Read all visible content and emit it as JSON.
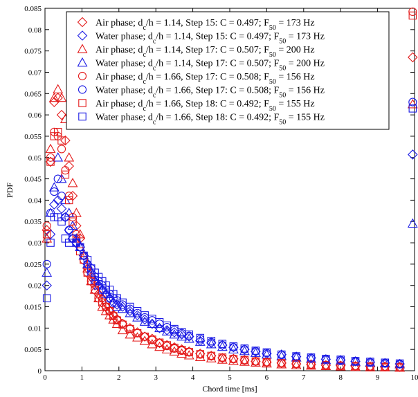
{
  "chart_data": {
    "type": "scatter",
    "title": "",
    "xlabel": "Chord time [ms]",
    "ylabel": "PDF",
    "xlim": [
      0,
      10
    ],
    "ylim": [
      0,
      0.085
    ],
    "xticks": [
      "0",
      "1",
      "2",
      "3",
      "4",
      "5",
      "6",
      "7",
      "8",
      "9",
      "10"
    ],
    "yticks": [
      "0",
      "0.005",
      "0.01",
      "0.015",
      "0.02",
      "0.025",
      "0.03",
      "0.035",
      "0.04",
      "0.045",
      "0.05",
      "0.055",
      "0.06",
      "0.065",
      "0.07",
      "0.075",
      "0.08",
      "0.085"
    ],
    "grid": false,
    "legend_position": "top-right",
    "series": [
      {
        "name": "Air phase; dc/h = 1.14, Step 15: C = 0.497; F50 = 173 Hz",
        "phase": "Air phase",
        "dch": "1.14",
        "step": "15",
        "C": "0.497",
        "F50": "173 Hz",
        "marker": "diamond",
        "color": "#e41a1a",
        "x": [
          0.05,
          0.15,
          0.25,
          0.35,
          0.45,
          0.55,
          0.65,
          0.75,
          0.85,
          0.95,
          1.05,
          1.15,
          1.25,
          1.35,
          1.45,
          1.55,
          1.65,
          1.75,
          1.85,
          1.95,
          2.1,
          2.3,
          2.5,
          2.7,
          2.9,
          3.1,
          3.3,
          3.5,
          3.7,
          3.9,
          4.2,
          4.5,
          4.8,
          5.1,
          5.4,
          5.7,
          6.0,
          6.4,
          6.8,
          7.2,
          7.6,
          8.0,
          8.4,
          8.8,
          9.2,
          9.6,
          9.95
        ],
        "y": [
          0.033,
          0.049,
          0.063,
          0.064,
          0.06,
          0.054,
          0.048,
          0.041,
          0.034,
          0.031,
          0.027,
          0.024,
          0.022,
          0.02,
          0.018,
          0.017,
          0.015,
          0.014,
          0.013,
          0.012,
          0.011,
          0.01,
          0.009,
          0.008,
          0.0075,
          0.0065,
          0.006,
          0.0055,
          0.005,
          0.0045,
          0.004,
          0.0035,
          0.003,
          0.0028,
          0.0025,
          0.0022,
          0.002,
          0.0018,
          0.0016,
          0.0015,
          0.0013,
          0.0012,
          0.0011,
          0.001,
          0.001,
          0.0009,
          0.0735
        ]
      },
      {
        "name": "Water phase; dc/h = 1.14, Step 15: C = 0.497; F50 = 173 Hz",
        "phase": "Water phase",
        "dch": "1.14",
        "step": "15",
        "C": "0.497",
        "F50": "173 Hz",
        "marker": "diamond",
        "color": "#1a1ae4",
        "x": [
          0.05,
          0.15,
          0.25,
          0.35,
          0.45,
          0.55,
          0.65,
          0.75,
          0.85,
          0.95,
          1.05,
          1.15,
          1.25,
          1.35,
          1.45,
          1.55,
          1.65,
          1.75,
          1.85,
          1.95,
          2.1,
          2.3,
          2.5,
          2.7,
          2.9,
          3.1,
          3.3,
          3.5,
          3.7,
          3.9,
          4.2,
          4.5,
          4.8,
          5.1,
          5.4,
          5.7,
          6.0,
          6.4,
          6.8,
          7.2,
          7.6,
          8.0,
          8.4,
          8.8,
          9.2,
          9.6,
          9.95
        ],
        "y": [
          0.02,
          0.032,
          0.039,
          0.04,
          0.038,
          0.036,
          0.033,
          0.031,
          0.03,
          0.029,
          0.027,
          0.025,
          0.023,
          0.021,
          0.02,
          0.019,
          0.018,
          0.017,
          0.016,
          0.0155,
          0.015,
          0.014,
          0.013,
          0.012,
          0.011,
          0.01,
          0.0095,
          0.009,
          0.0085,
          0.008,
          0.007,
          0.0065,
          0.006,
          0.0055,
          0.005,
          0.0045,
          0.004,
          0.0038,
          0.0033,
          0.003,
          0.0027,
          0.0025,
          0.0022,
          0.002,
          0.0018,
          0.0016,
          0.0507
        ]
      },
      {
        "name": "Air phase; dc/h = 1.14, Step 17: C = 0.507; F50 = 200 Hz",
        "phase": "Air phase",
        "dch": "1.14",
        "step": "17",
        "C": "0.507",
        "F50": "200 Hz",
        "marker": "triangle",
        "color": "#e41a1a",
        "x": [
          0.05,
          0.15,
          0.25,
          0.35,
          0.45,
          0.55,
          0.65,
          0.75,
          0.85,
          0.95,
          1.05,
          1.15,
          1.25,
          1.35,
          1.45,
          1.55,
          1.65,
          1.75,
          1.85,
          1.95,
          2.1,
          2.3,
          2.5,
          2.7,
          2.9,
          3.1,
          3.3,
          3.5,
          3.7,
          3.9,
          4.2,
          4.5,
          4.8,
          5.1,
          5.4,
          5.7,
          6.0,
          6.4,
          6.8,
          7.2,
          7.6,
          8.0,
          8.4,
          8.8,
          9.2,
          9.6,
          9.95
        ],
        "y": [
          0.031,
          0.052,
          0.064,
          0.066,
          0.064,
          0.059,
          0.05,
          0.044,
          0.037,
          0.032,
          0.027,
          0.024,
          0.021,
          0.019,
          0.017,
          0.015,
          0.014,
          0.013,
          0.012,
          0.011,
          0.0095,
          0.0085,
          0.0078,
          0.007,
          0.0062,
          0.0056,
          0.005,
          0.0045,
          0.004,
          0.0036,
          0.0032,
          0.0029,
          0.0026,
          0.0023,
          0.0021,
          0.0019,
          0.0017,
          0.0015,
          0.0013,
          0.0012,
          0.0011,
          0.001,
          0.0009,
          0.0008,
          0.0008,
          0.0007,
          0.0625
        ]
      },
      {
        "name": "Water phase; dc/h = 1.14, Step 17: C = 0.507; F50 = 200 Hz",
        "phase": "Water phase",
        "dch": "1.14",
        "step": "17",
        "C": "0.507",
        "F50": "200 Hz",
        "marker": "triangle",
        "color": "#1a1ae4",
        "x": [
          0.05,
          0.15,
          0.25,
          0.35,
          0.45,
          0.55,
          0.65,
          0.75,
          0.85,
          0.95,
          1.05,
          1.15,
          1.25,
          1.35,
          1.45,
          1.55,
          1.65,
          1.75,
          1.85,
          1.95,
          2.1,
          2.3,
          2.5,
          2.7,
          2.9,
          3.1,
          3.3,
          3.5,
          3.7,
          3.9,
          4.2,
          4.5,
          4.8,
          5.1,
          5.4,
          5.7,
          6.0,
          6.4,
          6.8,
          7.2,
          7.6,
          8.0,
          8.4,
          8.8,
          9.2,
          9.6,
          9.95
        ],
        "y": [
          0.023,
          0.037,
          0.043,
          0.05,
          0.045,
          0.04,
          0.037,
          0.034,
          0.031,
          0.029,
          0.027,
          0.025,
          0.023,
          0.021,
          0.02,
          0.019,
          0.018,
          0.017,
          0.016,
          0.015,
          0.0145,
          0.0135,
          0.0125,
          0.0115,
          0.011,
          0.01,
          0.0092,
          0.0085,
          0.008,
          0.0075,
          0.0068,
          0.0062,
          0.0056,
          0.005,
          0.0046,
          0.0042,
          0.0038,
          0.0034,
          0.0031,
          0.0028,
          0.0025,
          0.0023,
          0.0021,
          0.0019,
          0.0017,
          0.0015,
          0.0345
        ]
      },
      {
        "name": "Air phase; dc/h = 1.66, Step 17: C = 0.508; F50 = 156 Hz",
        "phase": "Air phase",
        "dch": "1.66",
        "step": "17",
        "C": "0.508",
        "F50": "156 Hz",
        "marker": "circle",
        "color": "#e41a1a",
        "x": [
          0.05,
          0.15,
          0.25,
          0.35,
          0.45,
          0.55,
          0.65,
          0.75,
          0.85,
          0.95,
          1.05,
          1.15,
          1.25,
          1.35,
          1.45,
          1.55,
          1.65,
          1.75,
          1.85,
          1.95,
          2.1,
          2.3,
          2.5,
          2.7,
          2.9,
          3.1,
          3.3,
          3.5,
          3.7,
          3.9,
          4.2,
          4.5,
          4.8,
          5.1,
          5.4,
          5.7,
          6.0,
          6.4,
          6.8,
          7.2,
          7.6,
          8.0,
          8.4,
          8.8,
          9.2,
          9.6,
          9.95
        ],
        "y": [
          0.034,
          0.05,
          0.056,
          0.055,
          0.052,
          0.047,
          0.041,
          0.036,
          0.032,
          0.029,
          0.026,
          0.023,
          0.021,
          0.019,
          0.017,
          0.016,
          0.015,
          0.014,
          0.013,
          0.012,
          0.011,
          0.0098,
          0.0088,
          0.008,
          0.0072,
          0.0065,
          0.0058,
          0.0052,
          0.0047,
          0.0043,
          0.0038,
          0.0034,
          0.003,
          0.0027,
          0.0024,
          0.0022,
          0.002,
          0.0018,
          0.0016,
          0.0014,
          0.0013,
          0.0012,
          0.0011,
          0.001,
          0.0009,
          0.0008,
          0.0842
        ]
      },
      {
        "name": "Water phase; dc/h = 1.66, Step 17: C = 0.508; F50 = 156 Hz",
        "phase": "Water phase",
        "dch": "1.66",
        "step": "17",
        "C": "0.508",
        "F50": "156 Hz",
        "marker": "circle",
        "color": "#1a1ae4",
        "x": [
          0.05,
          0.15,
          0.25,
          0.35,
          0.45,
          0.55,
          0.65,
          0.75,
          0.85,
          0.95,
          1.05,
          1.15,
          1.25,
          1.35,
          1.45,
          1.55,
          1.65,
          1.75,
          1.85,
          1.95,
          2.1,
          2.3,
          2.5,
          2.7,
          2.9,
          3.1,
          3.3,
          3.5,
          3.7,
          3.9,
          4.2,
          4.5,
          4.8,
          5.1,
          5.4,
          5.7,
          6.0,
          6.4,
          6.8,
          7.2,
          7.6,
          8.0,
          8.4,
          8.8,
          9.2,
          9.6,
          9.95
        ],
        "y": [
          0.025,
          0.037,
          0.042,
          0.045,
          0.041,
          0.036,
          0.033,
          0.031,
          0.03,
          0.029,
          0.027,
          0.025,
          0.024,
          0.022,
          0.021,
          0.02,
          0.019,
          0.018,
          0.017,
          0.0165,
          0.0155,
          0.0145,
          0.0135,
          0.0125,
          0.0118,
          0.011,
          0.0102,
          0.0095,
          0.0088,
          0.0082,
          0.0074,
          0.0067,
          0.006,
          0.0055,
          0.005,
          0.0046,
          0.0042,
          0.0037,
          0.0033,
          0.003,
          0.0027,
          0.0025,
          0.0022,
          0.002,
          0.0018,
          0.0016,
          0.063
        ]
      },
      {
        "name": "Air phase; dc/h = 1.66, Step 18: C = 0.492; F50 = 155 Hz",
        "phase": "Air phase",
        "dch": "1.66",
        "step": "18",
        "C": "0.492",
        "F50": "155 Hz",
        "marker": "square",
        "color": "#e41a1a",
        "x": [
          0.05,
          0.15,
          0.25,
          0.35,
          0.45,
          0.55,
          0.65,
          0.75,
          0.85,
          0.95,
          1.05,
          1.15,
          1.25,
          1.35,
          1.45,
          1.55,
          1.65,
          1.75,
          1.85,
          1.95,
          2.1,
          2.3,
          2.5,
          2.7,
          2.9,
          3.1,
          3.3,
          3.5,
          3.7,
          3.9,
          4.2,
          4.5,
          4.8,
          5.1,
          5.4,
          5.7,
          6.0,
          6.4,
          6.8,
          7.2,
          7.6,
          8.0,
          8.4,
          8.8,
          9.2,
          9.6,
          9.95
        ],
        "y": [
          0.032,
          0.049,
          0.055,
          0.056,
          0.054,
          0.046,
          0.04,
          0.035,
          0.031,
          0.028,
          0.026,
          0.023,
          0.021,
          0.019,
          0.017,
          0.016,
          0.015,
          0.014,
          0.0128,
          0.0118,
          0.0108,
          0.0098,
          0.0088,
          0.008,
          0.0073,
          0.0066,
          0.006,
          0.0054,
          0.0049,
          0.0044,
          0.0039,
          0.0035,
          0.0031,
          0.0028,
          0.0025,
          0.0022,
          0.002,
          0.0018,
          0.0016,
          0.0014,
          0.0013,
          0.0012,
          0.0011,
          0.001,
          0.0009,
          0.0008,
          0.0833
        ]
      },
      {
        "name": "Water phase; dc/h = 1.66, Step 18: C = 0.492; F50 = 155 Hz",
        "phase": "Water phase",
        "dch": "1.66",
        "step": "18",
        "C": "0.492",
        "F50": "155 Hz",
        "marker": "square",
        "color": "#1a1ae4",
        "x": [
          0.05,
          0.15,
          0.25,
          0.35,
          0.45,
          0.55,
          0.65,
          0.75,
          0.85,
          0.95,
          1.05,
          1.15,
          1.25,
          1.35,
          1.45,
          1.55,
          1.65,
          1.75,
          1.85,
          1.95,
          2.1,
          2.3,
          2.5,
          2.7,
          2.9,
          3.1,
          3.3,
          3.5,
          3.7,
          3.9,
          4.2,
          4.5,
          4.8,
          5.1,
          5.4,
          5.7,
          6.0,
          6.4,
          6.8,
          7.2,
          7.6,
          8.0,
          8.4,
          8.8,
          9.2,
          9.6,
          9.95
        ],
        "y": [
          0.017,
          0.03,
          0.036,
          0.036,
          0.035,
          0.031,
          0.03,
          0.031,
          0.03,
          0.029,
          0.027,
          0.026,
          0.024,
          0.023,
          0.022,
          0.021,
          0.02,
          0.019,
          0.018,
          0.017,
          0.016,
          0.015,
          0.014,
          0.013,
          0.0122,
          0.0114,
          0.0106,
          0.0098,
          0.0091,
          0.0085,
          0.0077,
          0.007,
          0.0063,
          0.0057,
          0.0052,
          0.0047,
          0.0043,
          0.0038,
          0.0034,
          0.0031,
          0.0028,
          0.0026,
          0.0023,
          0.0021,
          0.0019,
          0.0017,
          0.0615
        ]
      }
    ]
  }
}
